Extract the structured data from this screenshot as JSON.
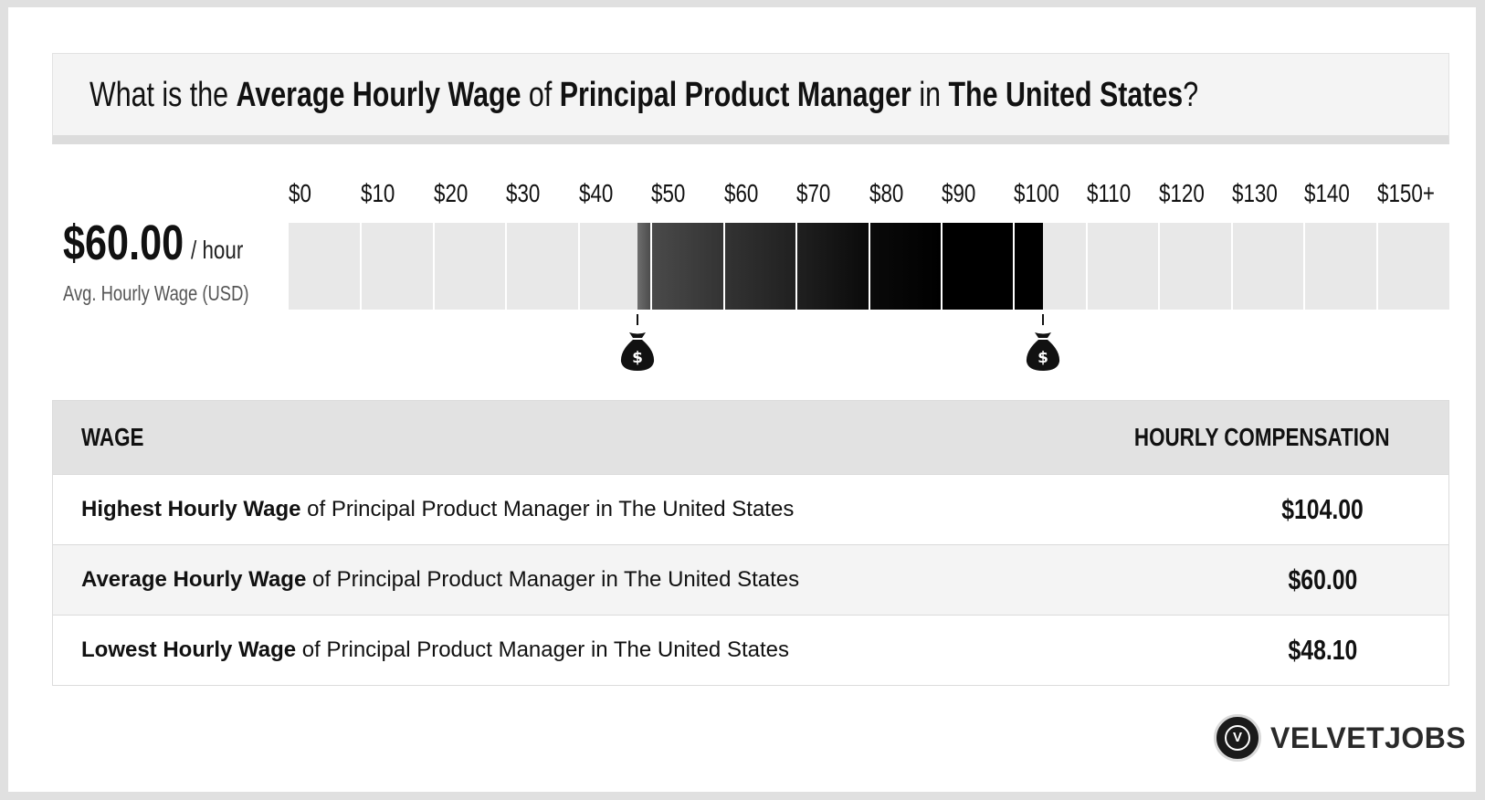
{
  "title": {
    "p1": "What is the ",
    "b1": "Average Hourly Wage",
    "p2": " of ",
    "b2": "Principal Product Manager",
    "p3": " in ",
    "b3": "The United States",
    "p4": "?"
  },
  "summary": {
    "wage": "$60.00",
    "unit": "/ hour",
    "label": "Avg. Hourly Wage (USD)"
  },
  "chart_data": {
    "type": "bar",
    "x_tick_labels": [
      "$0",
      "$10",
      "$20",
      "$30",
      "$40",
      "$50",
      "$60",
      "$70",
      "$80",
      "$90",
      "$100",
      "$110",
      "$120",
      "$130",
      "$140",
      "$150+"
    ],
    "xlim": [
      0,
      150
    ],
    "range": [
      48.1,
      104.0
    ],
    "average": 60.0,
    "highlight_colors": [
      "#6e6e6e",
      "#4a4a4a",
      "#333333",
      "#202020",
      "#0a0a0a",
      "#000000"
    ],
    "grid": true
  },
  "markers": {
    "low_icon": "money-bag-icon",
    "high_icon": "money-bag-icon",
    "symbol": "$"
  },
  "table": {
    "headers": [
      "WAGE",
      "HOURLY COMPENSATION"
    ],
    "rows": [
      {
        "bold": "Highest Hourly Wage",
        "rest": " of Principal Product Manager in The United States",
        "value": "$104.00"
      },
      {
        "bold": "Average Hourly Wage",
        "rest": " of Principal Product Manager in The United States",
        "value": "$60.00"
      },
      {
        "bold": "Lowest Hourly Wage",
        "rest": " of Principal Product Manager in The United States",
        "value": "$48.10"
      }
    ]
  },
  "brand": {
    "name": "VELVETJOBS",
    "mark": "V",
    "colors": {
      "dark": "#1a1a1a",
      "light": "#e8e8e8"
    }
  }
}
